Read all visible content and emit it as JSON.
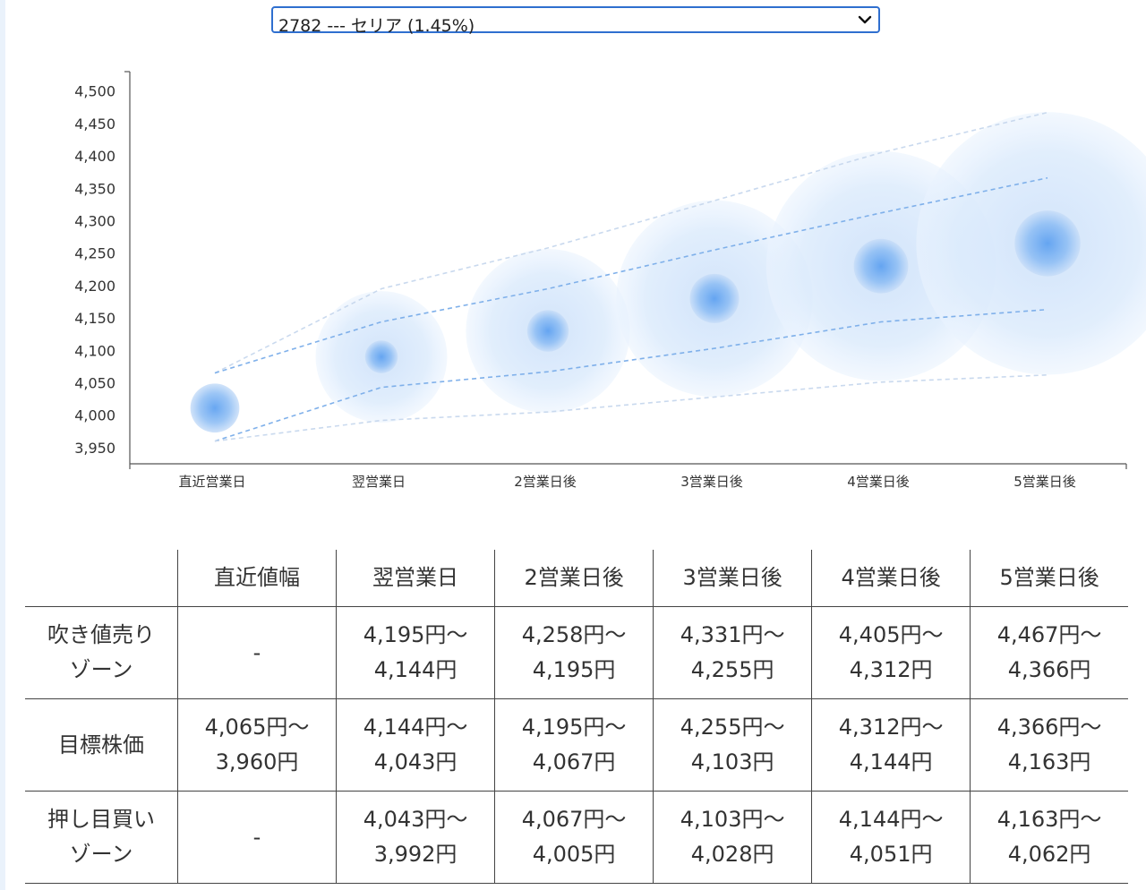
{
  "selector": {
    "value": "2782 --- セリア (1.45%)"
  },
  "chart_data": {
    "type": "scatter",
    "categories": [
      "直近営業日",
      "翌営業日",
      "2営業日後",
      "3営業日後",
      "4営業日後",
      "5営業日後"
    ],
    "ylim": [
      3925,
      4530
    ],
    "yticks": [
      "4,500",
      "4,450",
      "4,400",
      "4,350",
      "4,300",
      "4,250",
      "4,200",
      "4,150",
      "4,100",
      "4,050",
      "4,000",
      "3,950"
    ],
    "ytick_values": [
      4500,
      4450,
      4400,
      4350,
      4300,
      4250,
      4200,
      4150,
      4100,
      4050,
      4000,
      3950
    ],
    "center": [
      4011,
      4090,
      4130,
      4180,
      4230,
      4265
    ],
    "inner_low": [
      3960,
      4043,
      4067,
      4103,
      4144,
      4163
    ],
    "inner_high": [
      4065,
      4144,
      4195,
      4255,
      4312,
      4366
    ],
    "outer_low": [
      3960,
      3992,
      4005,
      4028,
      4051,
      4062
    ],
    "outer_high": [
      4065,
      4195,
      4258,
      4331,
      4405,
      4467
    ],
    "accent_color": "#3d8ee6",
    "halo_color": "#d6e7fb",
    "grid": false
  },
  "table": {
    "corner": "",
    "headers": [
      "直近値幅",
      "翌営業日",
      "2営業日後",
      "3営業日後",
      "4営業日後",
      "5営業日後"
    ],
    "rows": [
      {
        "label": [
          "吹き値売り",
          "ゾーン"
        ],
        "cells": [
          [
            "-"
          ],
          [
            "4,195円〜",
            "4,144円"
          ],
          [
            "4,258円〜",
            "4,195円"
          ],
          [
            "4,331円〜",
            "4,255円"
          ],
          [
            "4,405円〜",
            "4,312円"
          ],
          [
            "4,467円〜",
            "4,366円"
          ]
        ]
      },
      {
        "label": [
          "目標株価"
        ],
        "cells": [
          [
            "4,065円〜",
            "3,960円"
          ],
          [
            "4,144円〜",
            "4,043円"
          ],
          [
            "4,195円〜",
            "4,067円"
          ],
          [
            "4,255円〜",
            "4,103円"
          ],
          [
            "4,312円〜",
            "4,144円"
          ],
          [
            "4,366円〜",
            "4,163円"
          ]
        ]
      },
      {
        "label": [
          "押し目買い",
          "ゾーン"
        ],
        "cells": [
          [
            "-"
          ],
          [
            "4,043円〜",
            "3,992円"
          ],
          [
            "4,067円〜",
            "4,005円"
          ],
          [
            "4,103円〜",
            "4,028円"
          ],
          [
            "4,144円〜",
            "4,051円"
          ],
          [
            "4,163円〜",
            "4,062円"
          ]
        ]
      }
    ]
  }
}
